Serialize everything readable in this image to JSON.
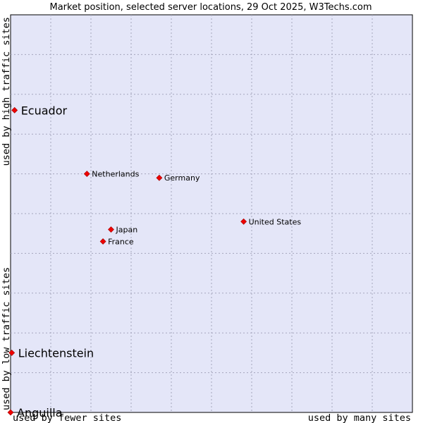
{
  "chart_data": {
    "type": "scatter",
    "title": "Market position, selected server locations, 29 Oct 2025, W3Techs.com",
    "xlabel_left": "used by fewer sites",
    "xlabel_right": "used by many sites",
    "ylabel_bottom": "used by low traffic sites",
    "ylabel_top": "used by high traffic sites",
    "xlim": [
      0,
      100
    ],
    "ylim": [
      0,
      100
    ],
    "grid": true,
    "colors": {
      "plot_background": "#e4e6f8",
      "grid": "#a5a5bd",
      "marker": "#ee0000"
    },
    "points": [
      {
        "label": "Ecuador",
        "x": 1,
        "y": 76,
        "size": "large"
      },
      {
        "label": "Netherlands",
        "x": 19,
        "y": 60,
        "size": "small"
      },
      {
        "label": "Germany",
        "x": 37,
        "y": 59,
        "size": "small"
      },
      {
        "label": "United States",
        "x": 58,
        "y": 48,
        "size": "small"
      },
      {
        "label": "Japan",
        "x": 25,
        "y": 46,
        "size": "small"
      },
      {
        "label": "France",
        "x": 23,
        "y": 43,
        "size": "small"
      },
      {
        "label": "Liechtenstein",
        "x": 0.3,
        "y": 15,
        "size": "large"
      },
      {
        "label": "Anguilla",
        "x": 0,
        "y": 0,
        "size": "large"
      }
    ]
  }
}
